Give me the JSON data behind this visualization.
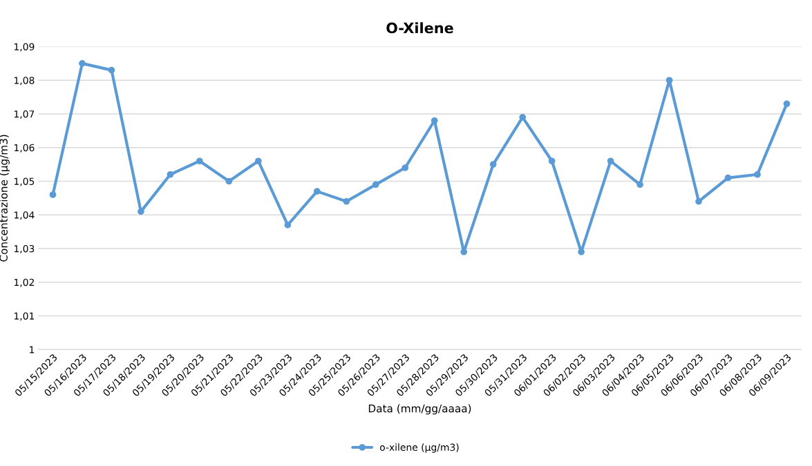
{
  "chart_data": {
    "type": "line",
    "title": "O-Xilene",
    "xlabel": "Data (mm/gg/aaaa)",
    "ylabel": "Concentrazione (µg/m3)",
    "categories": [
      "05/15/2023",
      "05/16/2023",
      "05/17/2023",
      "05/18/2023",
      "05/19/2023",
      "05/20/2023",
      "05/21/2023",
      "05/22/2023",
      "05/23/2023",
      "05/24/2023",
      "05/25/2023",
      "05/26/2023",
      "05/27/2023",
      "05/28/2023",
      "05/29/2023",
      "05/30/2023",
      "05/31/2023",
      "06/01/2023",
      "06/02/2023",
      "06/03/2023",
      "06/04/2023",
      "06/05/2023",
      "06/06/2023",
      "06/07/2023",
      "06/08/2023",
      "06/09/2023"
    ],
    "series": [
      {
        "name": "o-xilene (µg/m3)",
        "color": "#5b9bd5",
        "values": [
          1.046,
          1.085,
          1.083,
          1.041,
          1.052,
          1.056,
          1.05,
          1.056,
          1.037,
          1.047,
          1.044,
          1.049,
          1.054,
          1.068,
          1.029,
          1.055,
          1.069,
          1.056,
          1.029,
          1.056,
          1.049,
          1.08,
          1.044,
          1.051,
          1.052,
          1.073
        ]
      }
    ],
    "ylim": [
      1,
      1.09
    ],
    "yticks": [
      1,
      {
        "value": 1.01,
        "label": "1,01"
      },
      {
        "value": 1.02,
        "label": "1,02"
      },
      {
        "value": 1.03,
        "label": "1,03"
      },
      {
        "value": 1.04,
        "label": "1,04"
      },
      {
        "value": 1.05,
        "label": "1,05"
      },
      {
        "value": 1.06,
        "label": "1,06"
      },
      {
        "value": 1.07,
        "label": "1,07"
      },
      {
        "value": 1.08,
        "label": "1,08"
      },
      {
        "value": 1.09,
        "label": "1,09"
      }
    ],
    "grid": "y",
    "legend": "bottom",
    "marker": "circle",
    "line_style": "solid"
  }
}
